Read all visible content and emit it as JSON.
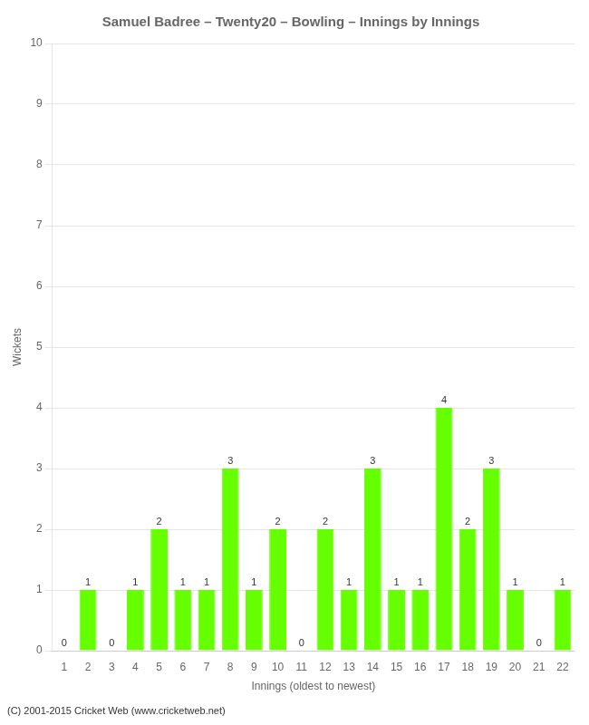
{
  "chart_data": {
    "type": "bar",
    "title": "Samuel Badree – Twenty20 – Bowling – Innings by Innings",
    "x_label": "Innings (oldest to newest)",
    "y_label": "Wickets",
    "footer": "(C) 2001-2015 Cricket Web (www.cricketweb.net)",
    "categories": [
      "1",
      "2",
      "3",
      "4",
      "5",
      "6",
      "7",
      "8",
      "9",
      "10",
      "11",
      "12",
      "13",
      "14",
      "15",
      "16",
      "17",
      "18",
      "19",
      "20",
      "21",
      "22"
    ],
    "values": [
      0,
      1,
      0,
      1,
      2,
      1,
      1,
      3,
      1,
      2,
      0,
      2,
      1,
      3,
      1,
      1,
      4,
      2,
      3,
      1,
      0,
      1
    ],
    "color": "#66ff00",
    "ylim": [
      0,
      10
    ],
    "yticks": [
      0,
      1,
      2,
      3,
      4,
      5,
      6,
      7,
      8,
      9,
      10
    ],
    "grid": true,
    "data_labels": true
  }
}
